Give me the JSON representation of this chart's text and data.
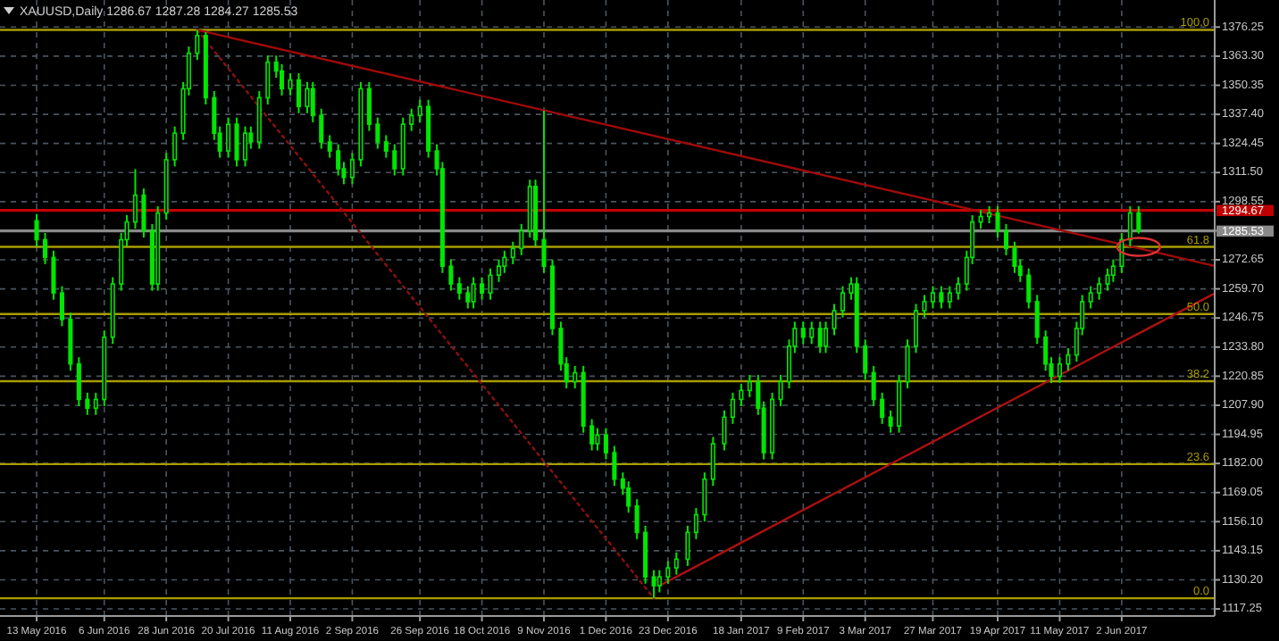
{
  "chart_data": {
    "type": "candlestick",
    "title": "XAUUSD,Daily  1286.67 1287.28 1284.27 1285.53",
    "color": "#00e600",
    "x": [
      "2016-05-13",
      "2016-05-16",
      "2016-05-19",
      "2016-05-22",
      "2016-05-25",
      "2016-05-28",
      "2016-05-31",
      "2016-06-03",
      "2016-06-06",
      "2016-06-09",
      "2016-06-12",
      "2016-06-14",
      "2016-06-17",
      "2016-06-20",
      "2016-06-23",
      "2016-06-25",
      "2016-06-28",
      "2016-07-01",
      "2016-07-04",
      "2016-07-06",
      "2016-07-09",
      "2016-07-12",
      "2016-07-15",
      "2016-07-17",
      "2016-07-20",
      "2016-07-23",
      "2016-07-26",
      "2016-07-28",
      "2016-07-31",
      "2016-08-03",
      "2016-08-06",
      "2016-08-08",
      "2016-08-11",
      "2016-08-14",
      "2016-08-17",
      "2016-08-19",
      "2016-08-22",
      "2016-08-25",
      "2016-08-28",
      "2016-08-30",
      "2016-09-02",
      "2016-09-05",
      "2016-09-08",
      "2016-09-11",
      "2016-09-14",
      "2016-09-17",
      "2016-09-20",
      "2016-09-23",
      "2016-09-26",
      "2016-09-29",
      "2016-10-02",
      "2016-10-04",
      "2016-10-07",
      "2016-10-10",
      "2016-10-13",
      "2016-10-15",
      "2016-10-18",
      "2016-10-21",
      "2016-10-24",
      "2016-10-26",
      "2016-10-29",
      "2016-11-01",
      "2016-11-04",
      "2016-11-06",
      "2016-11-09",
      "2016-11-12",
      "2016-11-15",
      "2016-11-17",
      "2016-11-20",
      "2016-11-23",
      "2016-11-26",
      "2016-11-28",
      "2016-12-01",
      "2016-12-04",
      "2016-12-07",
      "2016-12-09",
      "2016-12-12",
      "2016-12-15",
      "2016-12-18",
      "2016-12-20",
      "2016-12-23",
      "2016-12-26",
      "2016-12-30",
      "2017-01-02",
      "2017-01-05",
      "2017-01-08",
      "2017-01-12",
      "2017-01-15",
      "2017-01-18",
      "2017-01-21",
      "2017-01-24",
      "2017-01-26",
      "2017-01-29",
      "2017-02-01",
      "2017-02-04",
      "2017-02-06",
      "2017-02-09",
      "2017-02-12",
      "2017-02-15",
      "2017-02-17",
      "2017-02-20",
      "2017-02-23",
      "2017-02-26",
      "2017-02-28",
      "2017-03-03",
      "2017-03-06",
      "2017-03-09",
      "2017-03-12",
      "2017-03-15",
      "2017-03-18",
      "2017-03-21",
      "2017-03-24",
      "2017-03-27",
      "2017-03-30",
      "2017-04-02",
      "2017-04-05",
      "2017-04-08",
      "2017-04-10",
      "2017-04-13",
      "2017-04-16",
      "2017-04-19",
      "2017-04-22",
      "2017-04-25",
      "2017-04-27",
      "2017-04-30",
      "2017-05-03",
      "2017-05-06",
      "2017-05-08",
      "2017-05-11",
      "2017-05-14",
      "2017-05-17",
      "2017-05-19",
      "2017-05-22",
      "2017-05-25",
      "2017-05-28",
      "2017-05-30",
      "2017-06-02",
      "2017-06-05",
      "2017-06-08"
    ],
    "ohlc": [
      [
        1290.0,
        1293.0,
        1278.6,
        1281.6
      ],
      [
        1281.6,
        1284.6,
        1270.7,
        1273.7
      ],
      [
        1273.7,
        1276.7,
        1254.9,
        1257.9
      ],
      [
        1257.9,
        1260.9,
        1243.1,
        1246.1
      ],
      [
        1246.1,
        1249.1,
        1223.3,
        1226.3
      ],
      [
        1226.3,
        1229.3,
        1207.5,
        1210.5
      ],
      [
        1210.5,
        1213.5,
        1203.6,
        1206.6
      ],
      [
        1206.6,
        1213.5,
        1203.6,
        1210.5
      ],
      [
        1210.5,
        1241.2,
        1207.5,
        1238.2
      ],
      [
        1238.2,
        1264.9,
        1235.2,
        1261.9
      ],
      [
        1261.9,
        1284.6,
        1258.9,
        1281.6
      ],
      [
        1281.6,
        1292.5,
        1278.6,
        1289.5
      ],
      [
        1289.5,
        1313.0,
        1286.5,
        1301.4
      ],
      [
        1301.4,
        1304.4,
        1282.6,
        1285.6
      ],
      [
        1285.6,
        1288.6,
        1258.9,
        1261.9
      ],
      [
        1261.9,
        1296.5,
        1258.9,
        1293.5
      ],
      [
        1293.5,
        1320.2,
        1290.5,
        1317.2
      ],
      [
        1317.2,
        1332.0,
        1314.2,
        1329.0
      ],
      [
        1329.0,
        1351.8,
        1326.0,
        1348.8
      ],
      [
        1348.8,
        1367.6,
        1345.8,
        1364.6
      ],
      [
        1364.6,
        1375.0,
        1361.6,
        1372.5
      ],
      [
        1372.5,
        1374.0,
        1341.8,
        1344.8
      ],
      [
        1344.8,
        1347.8,
        1326.0,
        1329.0
      ],
      [
        1329.0,
        1332.0,
        1318.1,
        1321.1
      ],
      [
        1321.1,
        1336.0,
        1318.1,
        1333.0
      ],
      [
        1333.0,
        1336.0,
        1314.2,
        1317.2
      ],
      [
        1317.2,
        1332.0,
        1314.2,
        1329.0
      ],
      [
        1329.0,
        1332.0,
        1322.1,
        1325.1
      ],
      [
        1325.1,
        1347.8,
        1322.1,
        1344.8
      ],
      [
        1344.8,
        1363.6,
        1341.8,
        1360.6
      ],
      [
        1360.6,
        1363.6,
        1353.7,
        1356.7
      ],
      [
        1356.7,
        1359.7,
        1345.8,
        1348.8
      ],
      [
        1348.8,
        1355.7,
        1345.8,
        1352.7
      ],
      [
        1352.7,
        1355.7,
        1337.9,
        1340.9
      ],
      [
        1340.9,
        1351.8,
        1337.9,
        1348.8
      ],
      [
        1348.8,
        1351.8,
        1333.9,
        1336.9
      ],
      [
        1336.9,
        1339.9,
        1322.1,
        1325.1
      ],
      [
        1325.1,
        1328.1,
        1318.1,
        1321.1
      ],
      [
        1321.1,
        1324.1,
        1310.2,
        1313.2
      ],
      [
        1313.2,
        1316.2,
        1306.3,
        1309.3
      ],
      [
        1309.3,
        1320.2,
        1306.3,
        1317.2
      ],
      [
        1317.2,
        1351.8,
        1314.2,
        1348.8
      ],
      [
        1348.8,
        1351.8,
        1330.0,
        1333.0
      ],
      [
        1333.0,
        1336.0,
        1322.1,
        1325.1
      ],
      [
        1325.1,
        1328.1,
        1318.1,
        1321.1
      ],
      [
        1321.1,
        1324.1,
        1310.2,
        1313.2
      ],
      [
        1313.2,
        1336.0,
        1310.2,
        1333.0
      ],
      [
        1333.0,
        1339.9,
        1330.0,
        1336.9
      ],
      [
        1336.9,
        1343.9,
        1333.9,
        1340.9
      ],
      [
        1340.9,
        1343.9,
        1318.1,
        1321.1
      ],
      [
        1321.1,
        1324.1,
        1310.2,
        1313.2
      ],
      [
        1313.2,
        1316.2,
        1266.8,
        1269.8
      ],
      [
        1269.8,
        1272.8,
        1258.9,
        1261.9
      ],
      [
        1261.9,
        1264.9,
        1254.9,
        1257.9
      ],
      [
        1257.9,
        1260.9,
        1251.0,
        1254.0
      ],
      [
        1254.0,
        1264.9,
        1251.0,
        1261.9
      ],
      [
        1261.9,
        1264.9,
        1254.9,
        1257.9
      ],
      [
        1257.9,
        1268.8,
        1254.9,
        1265.8
      ],
      [
        1265.8,
        1272.8,
        1262.8,
        1269.8
      ],
      [
        1269.8,
        1276.7,
        1266.8,
        1273.7
      ],
      [
        1273.7,
        1280.7,
        1270.7,
        1277.7
      ],
      [
        1277.7,
        1288.6,
        1274.7,
        1285.6
      ],
      [
        1285.6,
        1308.3,
        1282.6,
        1305.3
      ],
      [
        1305.3,
        1308.3,
        1278.6,
        1281.6
      ],
      [
        1281.6,
        1339.0,
        1266.8,
        1269.8
      ],
      [
        1269.8,
        1272.8,
        1239.1,
        1242.1
      ],
      [
        1242.1,
        1245.1,
        1223.3,
        1226.3
      ],
      [
        1226.3,
        1229.3,
        1215.4,
        1218.4
      ],
      [
        1218.4,
        1225.4,
        1215.4,
        1222.4
      ],
      [
        1222.4,
        1225.4,
        1195.7,
        1198.7
      ],
      [
        1198.7,
        1201.7,
        1187.8,
        1190.8
      ],
      [
        1190.8,
        1197.7,
        1187.8,
        1194.7
      ],
      [
        1194.7,
        1197.7,
        1183.8,
        1186.8
      ],
      [
        1186.8,
        1189.8,
        1172.0,
        1175.0
      ],
      [
        1175.0,
        1178.0,
        1168.0,
        1171.0
      ],
      [
        1171.0,
        1174.0,
        1160.1,
        1163.1
      ],
      [
        1163.1,
        1166.1,
        1148.3,
        1151.3
      ],
      [
        1151.3,
        1154.3,
        1128.5,
        1131.5
      ],
      [
        1131.5,
        1134.5,
        1122.0,
        1127.6
      ],
      [
        1127.6,
        1134.5,
        1124.6,
        1131.5
      ],
      [
        1131.5,
        1138.5,
        1128.5,
        1135.5
      ],
      [
        1135.5,
        1142.4,
        1132.5,
        1139.4
      ],
      [
        1139.4,
        1154.3,
        1136.4,
        1151.3
      ],
      [
        1151.3,
        1162.2,
        1148.3,
        1159.2
      ],
      [
        1159.2,
        1178.0,
        1156.2,
        1175.0
      ],
      [
        1175.0,
        1193.8,
        1172.0,
        1190.8
      ],
      [
        1190.8,
        1205.6,
        1187.8,
        1202.6
      ],
      [
        1202.6,
        1213.5,
        1199.6,
        1210.5
      ],
      [
        1210.5,
        1217.5,
        1207.5,
        1214.5
      ],
      [
        1214.5,
        1221.4,
        1211.5,
        1218.4
      ],
      [
        1218.4,
        1221.4,
        1203.6,
        1206.6
      ],
      [
        1206.6,
        1209.6,
        1183.8,
        1186.8
      ],
      [
        1186.8,
        1213.5,
        1183.8,
        1210.5
      ],
      [
        1210.5,
        1221.4,
        1207.5,
        1218.4
      ],
      [
        1218.4,
        1237.2,
        1215.4,
        1234.2
      ],
      [
        1234.2,
        1245.1,
        1231.2,
        1242.1
      ],
      [
        1242.1,
        1245.1,
        1235.2,
        1238.2
      ],
      [
        1238.2,
        1245.1,
        1235.2,
        1242.1
      ],
      [
        1242.1,
        1245.1,
        1231.2,
        1234.2
      ],
      [
        1234.2,
        1245.1,
        1231.2,
        1242.1
      ],
      [
        1242.1,
        1253.0,
        1239.1,
        1250.0
      ],
      [
        1250.0,
        1260.9,
        1247.0,
        1257.9
      ],
      [
        1257.9,
        1264.9,
        1254.9,
        1261.9
      ],
      [
        1261.9,
        1264.9,
        1231.2,
        1234.2
      ],
      [
        1234.2,
        1237.2,
        1219.4,
        1222.4
      ],
      [
        1222.4,
        1225.4,
        1207.5,
        1210.5
      ],
      [
        1210.5,
        1213.5,
        1199.6,
        1202.6
      ],
      [
        1202.6,
        1205.6,
        1195.7,
        1198.7
      ],
      [
        1198.7,
        1221.4,
        1195.7,
        1218.4
      ],
      [
        1218.4,
        1237.2,
        1215.4,
        1234.2
      ],
      [
        1234.2,
        1253.0,
        1231.2,
        1250.0
      ],
      [
        1250.0,
        1257.0,
        1247.0,
        1254.0
      ],
      [
        1254.0,
        1260.9,
        1251.0,
        1257.9
      ],
      [
        1257.9,
        1260.9,
        1251.0,
        1254.0
      ],
      [
        1254.0,
        1260.9,
        1251.0,
        1257.9
      ],
      [
        1257.9,
        1264.9,
        1254.9,
        1261.9
      ],
      [
        1261.9,
        1276.7,
        1258.9,
        1273.7
      ],
      [
        1273.7,
        1292.5,
        1270.7,
        1289.5
      ],
      [
        1289.5,
        1294.9,
        1286.5,
        1291.9
      ],
      [
        1291.9,
        1296.5,
        1288.9,
        1293.5
      ],
      [
        1293.5,
        1296.5,
        1282.6,
        1285.6
      ],
      [
        1285.6,
        1288.6,
        1274.7,
        1277.7
      ],
      [
        1277.7,
        1280.7,
        1266.8,
        1269.8
      ],
      [
        1269.8,
        1272.8,
        1262.8,
        1265.8
      ],
      [
        1265.8,
        1268.8,
        1251.0,
        1254.0
      ],
      [
        1254.0,
        1257.0,
        1235.2,
        1238.2
      ],
      [
        1238.2,
        1241.2,
        1223.3,
        1226.3
      ],
      [
        1226.3,
        1229.3,
        1217.8,
        1220.8
      ],
      [
        1220.8,
        1229.3,
        1217.8,
        1226.3
      ],
      [
        1226.3,
        1233.3,
        1223.3,
        1230.3
      ],
      [
        1230.3,
        1245.1,
        1227.3,
        1242.1
      ],
      [
        1242.1,
        1257.0,
        1239.1,
        1254.0
      ],
      [
        1254.0,
        1260.9,
        1251.0,
        1257.9
      ],
      [
        1257.9,
        1264.9,
        1254.9,
        1261.9
      ],
      [
        1261.9,
        1268.8,
        1258.9,
        1265.8
      ],
      [
        1265.8,
        1272.8,
        1262.8,
        1269.8
      ],
      [
        1269.8,
        1284.6,
        1266.8,
        1281.6
      ],
      [
        1281.6,
        1296.5,
        1278.6,
        1293.5
      ],
      [
        1293.5,
        1296.5,
        1284.3,
        1285.5
      ]
    ],
    "series": [
      {
        "type": "line",
        "color": "#a00a0a",
        "x": [
          "2016-07-09",
          "2017-07-05"
        ],
        "values": [
          1375.0,
          1269.9
        ]
      },
      {
        "type": "line",
        "color": "#8b1010",
        "line_style": "dotted",
        "x": [
          "2016-07-09",
          "2016-12-18"
        ],
        "values": [
          1375.0,
          1122.0
        ]
      },
      {
        "type": "line",
        "color": "#b01010",
        "x": [
          "2016-12-20",
          "2017-07-05"
        ],
        "values": [
          1127.6,
          1257.7
        ]
      }
    ],
    "xlim": [
      "2016-04-30",
      "2017-07-05"
    ],
    "xticks": [
      {
        "value": "2016-05-13",
        "label": "13 May 2016"
      },
      {
        "value": "2016-06-06",
        "label": "6 Jun 2016"
      },
      {
        "value": "2016-06-28",
        "label": "28 Jun 2016"
      },
      {
        "value": "2016-07-20",
        "label": "20 Jul 2016"
      },
      {
        "value": "2016-08-11",
        "label": "11 Aug 2016"
      },
      {
        "value": "2016-09-02",
        "label": "2 Sep 2016"
      },
      {
        "value": "2016-09-26",
        "label": "26 Sep 2016"
      },
      {
        "value": "2016-10-18",
        "label": "18 Oct 2016"
      },
      {
        "value": "2016-11-09",
        "label": "9 Nov 2016"
      },
      {
        "value": "2016-12-01",
        "label": "1 Dec 2016"
      },
      {
        "value": "2016-12-23",
        "label": "23 Dec 2016"
      },
      {
        "value": "2017-01-18",
        "label": "18 Jan 2017"
      },
      {
        "value": "2017-02-09",
        "label": "9 Feb 2017"
      },
      {
        "value": "2017-03-03",
        "label": "3 Mar 2017"
      },
      {
        "value": "2017-03-27",
        "label": "27 Mar 2017"
      },
      {
        "value": "2017-04-19",
        "label": "19 Apr 2017"
      },
      {
        "value": "2017-05-11",
        "label": "11 May 2017"
      },
      {
        "value": "2017-06-02",
        "label": "2 Jun 2017"
      }
    ],
    "ylim": [
      1114.1,
      1388.3
    ],
    "yticks": [
      {
        "value": 1117.25,
        "label": "1117.25"
      },
      {
        "value": 1130.2,
        "label": "1130.20"
      },
      {
        "value": 1143.15,
        "label": "1143.15"
      },
      {
        "value": 1156.1,
        "label": "1156.10"
      },
      {
        "value": 1169.05,
        "label": "1169.05"
      },
      {
        "value": 1182,
        "label": "1182.00"
      },
      {
        "value": 1194.95,
        "label": "1194.95"
      },
      {
        "value": 1207.9,
        "label": "1207.90"
      },
      {
        "value": 1220.85,
        "label": "1220.85"
      },
      {
        "value": 1233.8,
        "label": "1233.80"
      },
      {
        "value": 1246.75,
        "label": "1246.75"
      },
      {
        "value": 1259.7,
        "label": "1259.70"
      },
      {
        "value": 1272.65,
        "label": "1272.65"
      },
      {
        "value": 1285.6,
        "label": null
      },
      {
        "value": 1298.55,
        "label": "1298.55"
      },
      {
        "value": 1311.5,
        "label": "1311.50"
      },
      {
        "value": 1324.45,
        "label": "1324.45"
      },
      {
        "value": 1337.4,
        "label": "1337.40"
      },
      {
        "value": 1350.35,
        "label": "1350.35"
      },
      {
        "value": 1363.3,
        "label": "1363.30"
      },
      {
        "value": 1376.25,
        "label": "1376.25"
      }
    ],
    "y2lim": [
      1114.1,
      1388.3
    ],
    "ref_lines": [
      {
        "axis": "y",
        "value": 1375.0,
        "color": "#a89c00"
      },
      {
        "axis": "y",
        "value": 1278.4,
        "color": "#a89c00"
      },
      {
        "axis": "y",
        "value": 1248.5,
        "color": "#a89c00"
      },
      {
        "axis": "y",
        "value": 1218.6,
        "color": "#a89c00"
      },
      {
        "axis": "y",
        "value": 1181.7,
        "color": "#a89c00"
      },
      {
        "axis": "y",
        "value": 1122.0,
        "color": "#a89c00"
      },
      {
        "axis": "y2",
        "value": 1294.67,
        "label": "1294.67",
        "color": "#c00000"
      },
      {
        "axis": "y2",
        "value": 1285.53,
        "label": "1285.53",
        "color": "#8a8a8a"
      }
    ],
    "annotations": [
      {
        "text": "100.0",
        "x": "2017-07-05",
        "y": 1375.0
      },
      {
        "text": "61.8",
        "x": "2017-07-05",
        "y": 1278.4
      },
      {
        "text": "50.0",
        "x": "2017-07-05",
        "y": 1248.5
      },
      {
        "text": "38.2",
        "x": "2017-07-05",
        "y": 1218.6
      },
      {
        "text": "23.6",
        "x": "2017-07-05",
        "y": 1181.7
      },
      {
        "text": "0.0",
        "x": "2017-07-05",
        "y": 1122.0
      }
    ],
    "grid": true
  }
}
